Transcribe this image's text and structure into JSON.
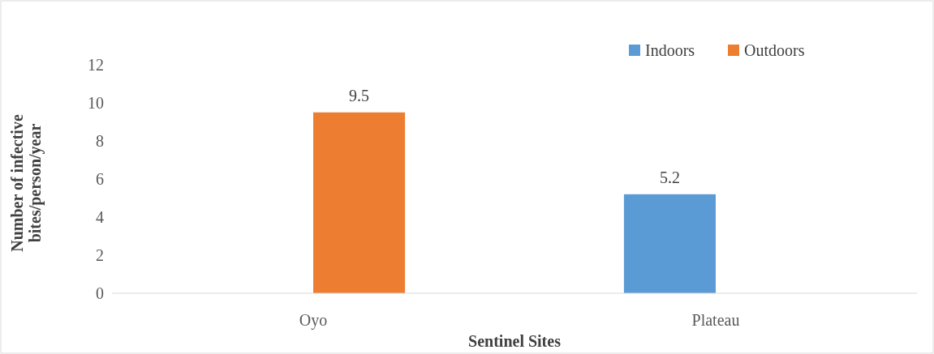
{
  "chart_data": {
    "type": "bar",
    "xlabel": "Sentinel Sites",
    "ylabel": "Number of infective bites/person/year",
    "categories": [
      "Oyo",
      "Plateau"
    ],
    "series": [
      {
        "name": "Indoors",
        "color": "#5b9bd5",
        "values": [
          null,
          5.2
        ],
        "value_labels": [
          null,
          "5.2"
        ]
      },
      {
        "name": "Outdoors",
        "color": "#ed7d31",
        "values": [
          9.5,
          null
        ],
        "value_labels": [
          "9.5",
          null
        ]
      }
    ],
    "ylim": [
      0,
      12
    ],
    "yticks": [
      0,
      2,
      4,
      6,
      8,
      10,
      12
    ],
    "grid": false,
    "legend": "top right"
  }
}
